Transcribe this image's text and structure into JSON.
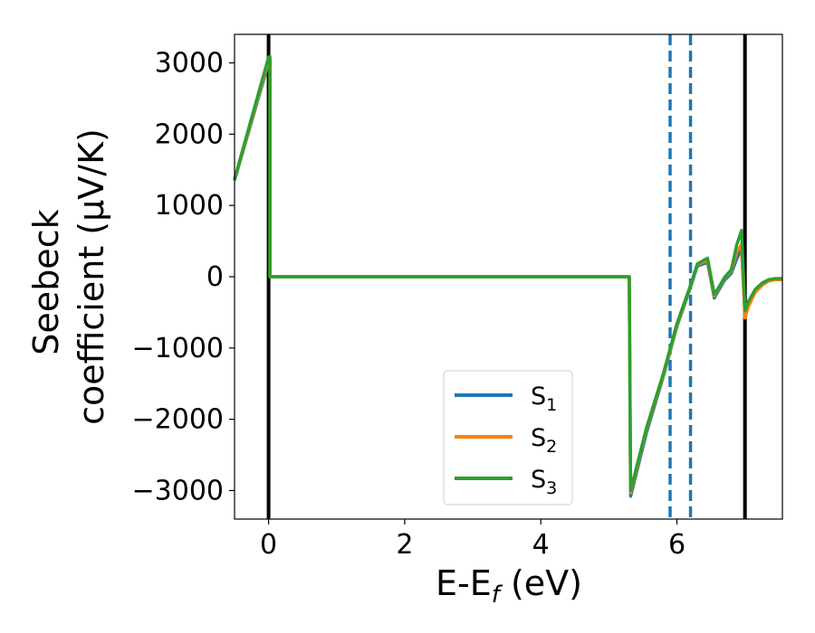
{
  "chart_data": {
    "type": "line",
    "xlabel_main": "E-E",
    "xlabel_sub": "f",
    "xlabel_unit": " (eV)",
    "ylabel_line1": "Seebeck",
    "ylabel_line2": "coefficient  (μV/K)",
    "xlim": [
      -0.5,
      7.55
    ],
    "ylim": [
      -3400,
      3400
    ],
    "xticks": [
      0,
      2,
      4,
      6
    ],
    "xtick_labels": [
      "0",
      "2",
      "4",
      "6"
    ],
    "yticks": [
      3000,
      2000,
      1000,
      0,
      -1000,
      -2000,
      -3000
    ],
    "ytick_labels": [
      "3000",
      "2000",
      "1000",
      "0",
      "−1000",
      "−2000",
      "−3000"
    ],
    "grid": false,
    "legend_position": "lower-center",
    "vlines_solid": [
      0.0,
      7.0
    ],
    "vlines_dashed": [
      5.9,
      6.2
    ],
    "series": [
      {
        "name_main": "S",
        "name_sub": "1",
        "color": "#1f77b4",
        "x": [
          -0.5,
          0.0,
          0.02,
          0.02,
          5.3,
          5.32,
          5.55,
          5.8,
          6.0,
          6.2,
          6.3,
          6.45,
          6.55,
          6.62,
          6.7,
          6.8,
          6.88,
          6.95,
          7.0,
          7.05,
          7.15,
          7.25,
          7.35,
          7.45,
          7.55
        ],
        "y": [
          1350,
          3000,
          3020,
          0,
          0,
          -3080,
          -2200,
          -1400,
          -700,
          -150,
          150,
          200,
          -300,
          -180,
          -50,
          50,
          250,
          400,
          -550,
          -400,
          -200,
          -100,
          -50,
          -30,
          -30
        ]
      },
      {
        "name_main": "S",
        "name_sub": "2",
        "color": "#ff7f0e",
        "x": [
          -0.5,
          0.0,
          0.02,
          0.02,
          5.3,
          5.32,
          5.55,
          5.8,
          6.0,
          6.2,
          6.3,
          6.45,
          6.55,
          6.62,
          6.7,
          6.8,
          6.88,
          6.95,
          7.0,
          7.05,
          7.15,
          7.25,
          7.35,
          7.45,
          7.55
        ],
        "y": [
          1360,
          3040,
          3050,
          0,
          0,
          -3030,
          -2150,
          -1380,
          -680,
          -130,
          170,
          230,
          -270,
          -150,
          -20,
          80,
          350,
          450,
          -580,
          -420,
          -220,
          -120,
          -60,
          -40,
          -40
        ]
      },
      {
        "name_main": "S",
        "name_sub": "3",
        "color": "#2ca02c",
        "x": [
          -0.5,
          0.0,
          0.02,
          0.02,
          5.3,
          5.32,
          5.55,
          5.8,
          6.0,
          6.2,
          6.3,
          6.45,
          6.55,
          6.62,
          6.7,
          6.8,
          6.88,
          6.95,
          7.0,
          7.05,
          7.15,
          7.25,
          7.35,
          7.45,
          7.55
        ],
        "y": [
          1370,
          3080,
          3090,
          0,
          0,
          -3000,
          -2130,
          -1360,
          -660,
          -120,
          180,
          260,
          -250,
          -140,
          -10,
          100,
          450,
          650,
          -480,
          -350,
          -180,
          -90,
          -40,
          -25,
          -25
        ]
      }
    ]
  }
}
